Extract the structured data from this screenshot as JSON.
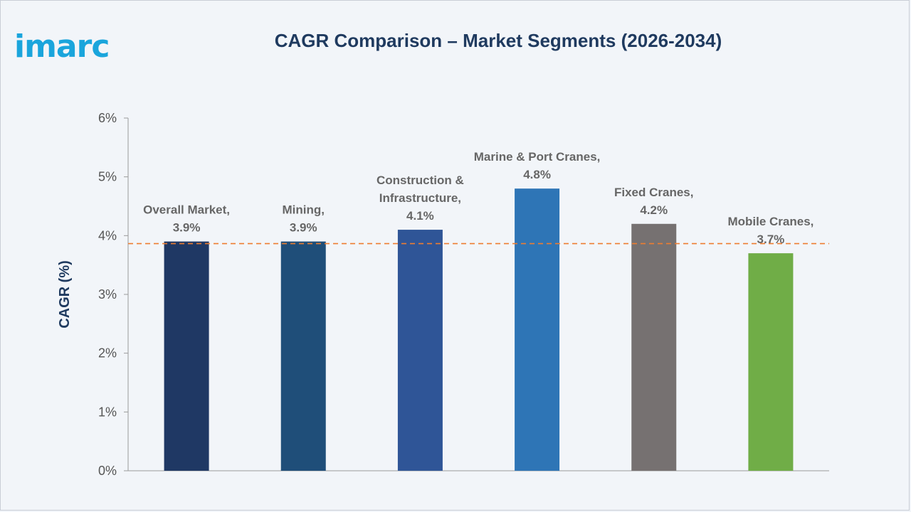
{
  "brand": {
    "logo_text": "imarc",
    "logo_color": "#1aa5dc"
  },
  "chart_data": {
    "type": "bar",
    "title": "CAGR Comparison – Market Segments (2026-2034)",
    "xlabel": "",
    "ylabel": "CAGR (%)",
    "ylim": [
      0,
      6
    ],
    "yticks": [
      "0%",
      "1%",
      "2%",
      "3%",
      "4%",
      "5%",
      "6%"
    ],
    "categories": [
      "Overall Market",
      "Mining",
      "Construction & Infrastructure",
      "Marine & Port Cranes",
      "Fixed Cranes",
      "Mobile Cranes"
    ],
    "values": [
      3.9,
      3.9,
      4.1,
      4.8,
      4.2,
      3.7
    ],
    "data_labels": [
      [
        "Overall Market,",
        "3.9%"
      ],
      [
        "Mining,",
        "3.9%"
      ],
      [
        "Construction &",
        "Infrastructure,",
        "4.1%"
      ],
      [
        "Marine & Port Cranes,",
        "4.8%"
      ],
      [
        "Fixed Cranes,",
        "4.2%"
      ],
      [
        "Mobile Cranes,",
        "3.7%"
      ]
    ],
    "colors": [
      "#1f3864",
      "#1f4e79",
      "#2f5597",
      "#2e75b6",
      "#767171",
      "#70ad47"
    ],
    "reference_line": {
      "value": 3.9,
      "style": "dashed",
      "color": "#ed7d31"
    },
    "grid": false,
    "legend": "none"
  }
}
